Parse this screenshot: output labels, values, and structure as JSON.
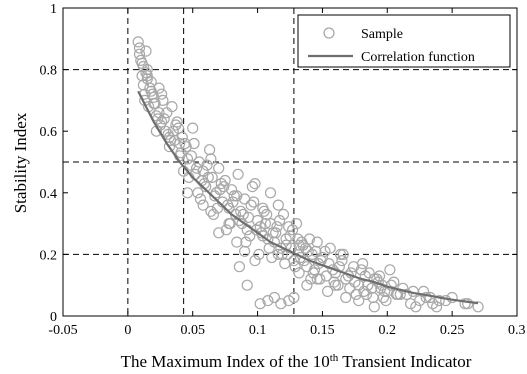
{
  "chart_data": {
    "type": "scatter",
    "title": "",
    "xlabel": {
      "prefix": "The Maximum Index of the 10",
      "sup": "th",
      "suffix": " Transient Indicator"
    },
    "ylabel": "Stability Index",
    "xlim": [
      -0.05,
      0.3
    ],
    "ylim": [
      0,
      1
    ],
    "x_ticks": [
      -0.05,
      0,
      0.05,
      0.1,
      0.15,
      0.2,
      0.25,
      0.3
    ],
    "x_tick_labels": [
      "-0.05",
      "0",
      "0.05",
      "0.1",
      "0.15",
      "0.2",
      "0.25",
      "0.3"
    ],
    "y_ticks": [
      0,
      0.2,
      0.4,
      0.6,
      0.8,
      1
    ],
    "y_tick_labels": [
      "0",
      "0.2",
      "0.4",
      "0.6",
      "0.8",
      "1"
    ],
    "grid": false,
    "legend_position": "top-right",
    "colors": {
      "sample": "#a8a8a8",
      "curve": "#6e6e6e",
      "axes": "#000000"
    },
    "series": [
      {
        "name": "Sample",
        "kind": "scatter",
        "marker": "open-circle",
        "x": [
          0.008,
          0.009,
          0.01,
          0.011,
          0.012,
          0.013,
          0.014,
          0.015,
          0.016,
          0.018,
          0.02,
          0.022,
          0.024,
          0.025,
          0.027,
          0.03,
          0.032,
          0.034,
          0.035,
          0.038,
          0.04,
          0.042,
          0.045,
          0.048,
          0.05,
          0.052,
          0.055,
          0.058,
          0.06,
          0.063,
          0.065,
          0.068,
          0.07,
          0.073,
          0.075,
          0.078,
          0.08,
          0.083,
          0.085,
          0.088,
          0.09,
          0.092,
          0.095,
          0.098,
          0.1,
          0.103,
          0.105,
          0.108,
          0.11,
          0.113,
          0.115,
          0.118,
          0.12,
          0.123,
          0.125,
          0.128,
          0.13,
          0.133,
          0.135,
          0.138,
          0.14,
          0.143,
          0.145,
          0.148,
          0.15,
          0.155,
          0.16,
          0.165,
          0.17,
          0.175,
          0.18,
          0.185,
          0.19,
          0.195,
          0.2,
          0.205,
          0.21,
          0.22,
          0.23,
          0.24,
          0.25,
          0.26,
          0.27,
          0.012,
          0.015,
          0.018,
          0.021,
          0.024,
          0.028,
          0.031,
          0.036,
          0.041,
          0.046,
          0.053,
          0.057,
          0.062,
          0.067,
          0.072,
          0.077,
          0.082,
          0.087,
          0.093,
          0.097,
          0.102,
          0.107,
          0.112,
          0.117,
          0.122,
          0.127,
          0.132,
          0.137,
          0.142,
          0.147,
          0.152,
          0.158,
          0.163,
          0.168,
          0.172,
          0.178,
          0.183,
          0.188,
          0.193,
          0.198,
          0.203,
          0.208,
          0.215,
          0.225,
          0.235,
          0.245,
          0.013,
          0.017,
          0.022,
          0.026,
          0.033,
          0.039,
          0.044,
          0.049,
          0.054,
          0.059,
          0.064,
          0.069,
          0.074,
          0.079,
          0.084,
          0.089,
          0.094,
          0.099,
          0.104,
          0.109,
          0.114,
          0.119,
          0.124,
          0.129,
          0.134,
          0.139,
          0.144,
          0.149,
          0.156,
          0.162,
          0.166,
          0.174,
          0.182,
          0.186,
          0.192,
          0.197,
          0.202,
          0.212,
          0.218,
          0.228,
          0.238,
          0.009,
          0.011,
          0.014,
          0.019,
          0.023,
          0.029,
          0.037,
          0.043,
          0.047,
          0.051,
          0.056,
          0.061,
          0.066,
          0.071,
          0.076,
          0.081,
          0.086,
          0.091,
          0.096,
          0.101,
          0.106,
          0.111,
          0.116,
          0.121,
          0.126,
          0.131,
          0.136,
          0.141,
          0.146,
          0.153,
          0.159,
          0.164,
          0.171,
          0.176,
          0.181,
          0.189,
          0.194,
          0.199,
          0.102,
          0.108,
          0.113,
          0.118,
          0.124,
          0.128,
          0.086,
          0.092,
          0.015,
          0.02,
          0.026,
          0.032,
          0.04,
          0.046,
          0.058,
          0.064,
          0.07,
          0.078,
          0.084,
          0.09,
          0.098,
          0.104,
          0.11,
          0.116,
          0.122,
          0.132,
          0.138,
          0.146,
          0.154,
          0.16,
          0.168,
          0.178,
          0.184,
          0.19,
          0.196,
          0.207,
          0.222,
          0.233,
          0.262
        ],
        "y": [
          0.89,
          0.87,
          0.83,
          0.78,
          0.75,
          0.72,
          0.86,
          0.8,
          0.68,
          0.76,
          0.71,
          0.65,
          0.74,
          0.62,
          0.7,
          0.66,
          0.55,
          0.68,
          0.6,
          0.63,
          0.52,
          0.58,
          0.55,
          0.49,
          0.61,
          0.46,
          0.5,
          0.47,
          0.42,
          0.54,
          0.45,
          0.4,
          0.48,
          0.37,
          0.44,
          0.35,
          0.41,
          0.33,
          0.46,
          0.3,
          0.38,
          0.28,
          0.36,
          0.43,
          0.31,
          0.27,
          0.34,
          0.25,
          0.4,
          0.24,
          0.29,
          0.22,
          0.33,
          0.2,
          0.26,
          0.18,
          0.3,
          0.19,
          0.23,
          0.16,
          0.25,
          0.14,
          0.21,
          0.12,
          0.19,
          0.17,
          0.14,
          0.18,
          0.13,
          0.11,
          0.15,
          0.1,
          0.12,
          0.09,
          0.08,
          0.11,
          0.07,
          0.08,
          0.06,
          0.05,
          0.06,
          0.04,
          0.03,
          0.81,
          0.77,
          0.73,
          0.69,
          0.66,
          0.64,
          0.59,
          0.57,
          0.53,
          0.51,
          0.48,
          0.44,
          0.45,
          0.39,
          0.43,
          0.36,
          0.39,
          0.34,
          0.32,
          0.37,
          0.29,
          0.33,
          0.27,
          0.31,
          0.25,
          0.28,
          0.23,
          0.22,
          0.2,
          0.17,
          0.21,
          0.15,
          0.16,
          0.12,
          0.14,
          0.1,
          0.13,
          0.09,
          0.11,
          0.08,
          0.1,
          0.07,
          0.07,
          0.05,
          0.04,
          0.05,
          0.7,
          0.74,
          0.6,
          0.72,
          0.57,
          0.61,
          0.56,
          0.52,
          0.4,
          0.43,
          0.51,
          0.35,
          0.42,
          0.3,
          0.39,
          0.33,
          0.26,
          0.28,
          0.35,
          0.22,
          0.27,
          0.2,
          0.29,
          0.16,
          0.24,
          0.21,
          0.15,
          0.18,
          0.22,
          0.1,
          0.2,
          0.16,
          0.08,
          0.14,
          0.12,
          0.06,
          0.15,
          0.09,
          0.04,
          0.08,
          0.03,
          0.85,
          0.82,
          0.79,
          0.72,
          0.64,
          0.6,
          0.62,
          0.47,
          0.45,
          0.56,
          0.38,
          0.49,
          0.33,
          0.41,
          0.28,
          0.37,
          0.31,
          0.24,
          0.42,
          0.2,
          0.3,
          0.19,
          0.36,
          0.17,
          0.22,
          0.25,
          0.18,
          0.12,
          0.24,
          0.13,
          0.11,
          0.2,
          0.09,
          0.07,
          0.17,
          0.06,
          0.13,
          0.05,
          0.04,
          0.05,
          0.06,
          0.04,
          0.05,
          0.06,
          0.16,
          0.1,
          0.78,
          0.69,
          0.63,
          0.58,
          0.56,
          0.4,
          0.36,
          0.34,
          0.27,
          0.3,
          0.24,
          0.21,
          0.18,
          0.26,
          0.3,
          0.2,
          0.23,
          0.14,
          0.1,
          0.12,
          0.08,
          0.1,
          0.06,
          0.05,
          0.07,
          0.03,
          0.1,
          0.07,
          0.03,
          0.06,
          0.04
        ]
      },
      {
        "name": "Correlation function",
        "kind": "line",
        "x": [
          0.008,
          0.02,
          0.03,
          0.04,
          0.05,
          0.06,
          0.07,
          0.08,
          0.09,
          0.1,
          0.11,
          0.12,
          0.13,
          0.14,
          0.15,
          0.16,
          0.17,
          0.18,
          0.19,
          0.2,
          0.21,
          0.22,
          0.23,
          0.24,
          0.25,
          0.26,
          0.27
        ],
        "y": [
          0.73,
          0.63,
          0.56,
          0.5,
          0.45,
          0.41,
          0.37,
          0.33,
          0.3,
          0.27,
          0.24,
          0.22,
          0.2,
          0.18,
          0.165,
          0.15,
          0.135,
          0.12,
          0.11,
          0.095,
          0.085,
          0.075,
          0.068,
          0.06,
          0.053,
          0.047,
          0.042
        ]
      }
    ],
    "reference_lines": {
      "vertical": [
        0,
        0.043,
        0.128
      ],
      "horizontal": [
        0.2,
        0.5,
        0.8
      ]
    }
  }
}
